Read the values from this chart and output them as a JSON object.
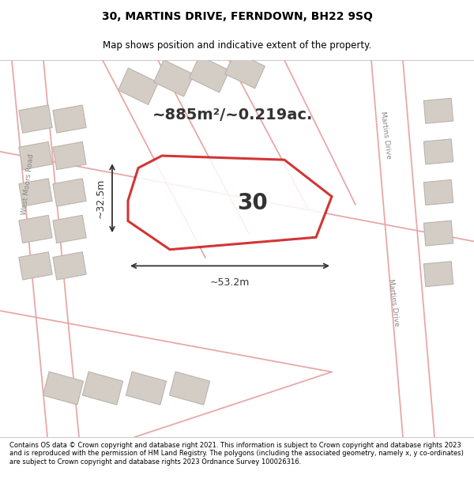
{
  "title": "30, MARTINS DRIVE, FERNDOWN, BH22 9SQ",
  "subtitle": "Map shows position and indicative extent of the property.",
  "footer": "Contains OS data © Crown copyright and database right 2021. This information is subject to Crown copyright and database rights 2023 and is reproduced with the permission of HM Land Registry. The polygons (including the associated geometry, namely x, y co-ordinates) are subject to Crown copyright and database rights 2023 Ordnance Survey 100026316.",
  "map_bg": "#f2efea",
  "plot_fill": "#ffffff",
  "plot_edge": "#cc1111",
  "road_color": "#e8a8a8",
  "building_fill": "#d4cdc5",
  "building_edge": "#bbb4ac",
  "area_text": "~885m²/~0.219ac.",
  "width_text": "~53.2m",
  "height_text": "~32.5m",
  "label_30": "30",
  "road_label_left": "West Moors Road",
  "road_label_right1": "Martins Drive",
  "road_label_right2": "Martins Drive",
  "arrow_color": "#333333",
  "text_color": "#333333",
  "title_fontsize": 10,
  "subtitle_fontsize": 8.5,
  "footer_fontsize": 6.0,
  "area_fontsize": 14,
  "dim_fontsize": 9,
  "label_fontsize": 20
}
